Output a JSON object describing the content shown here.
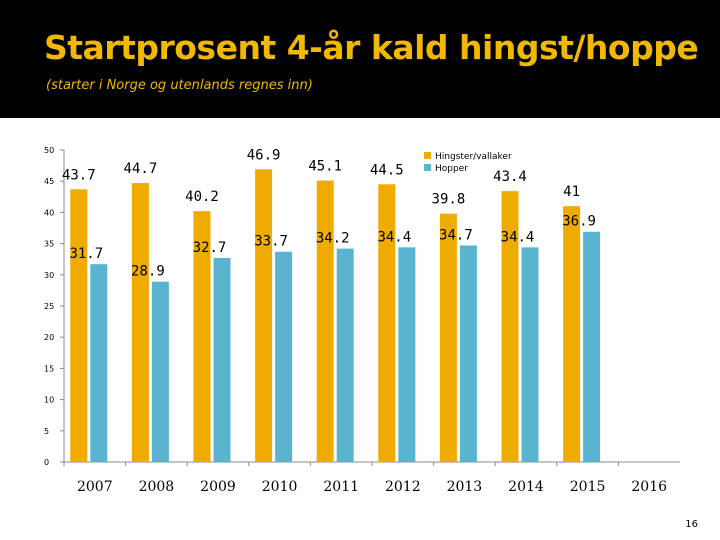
{
  "slide": {
    "title": "Startprosent 4-år kald hingst/hoppe",
    "subtitle": "(starter i Norge og utenlands regnes inn)",
    "page_number": "16"
  },
  "chart_data": {
    "type": "bar",
    "title": "",
    "xlabel": "",
    "ylabel": "",
    "ylim": [
      0,
      50
    ],
    "y_ticks": [
      0,
      5,
      10,
      15,
      20,
      25,
      30,
      35,
      40,
      45,
      50
    ],
    "grid": false,
    "legend_position": "top-right",
    "categories": [
      "2007",
      "2008",
      "2009",
      "2010",
      "2011",
      "2012",
      "2013",
      "2014",
      "2015",
      "2016"
    ],
    "series": [
      {
        "name": "Hingster/vallaker",
        "color": "#f0ab00",
        "values": [
          43.7,
          44.7,
          40.2,
          46.9,
          45.1,
          44.5,
          39.8,
          43.4,
          41,
          null
        ],
        "labels": [
          "43.7",
          "44.7",
          "40.2",
          "46.9",
          "45.1",
          "44.5",
          "39.8",
          "43.4",
          "41",
          null
        ]
      },
      {
        "name": "Hopper",
        "color": "#5ab4cf",
        "values": [
          31.7,
          28.9,
          32.7,
          33.7,
          34.2,
          34.4,
          34.7,
          34.4,
          36.9,
          null
        ],
        "labels": [
          "31.7",
          "28.9",
          "32.7",
          "33.7",
          "34.2",
          "34.4",
          "34.7",
          "34.4",
          "36.9",
          null
        ]
      }
    ]
  }
}
